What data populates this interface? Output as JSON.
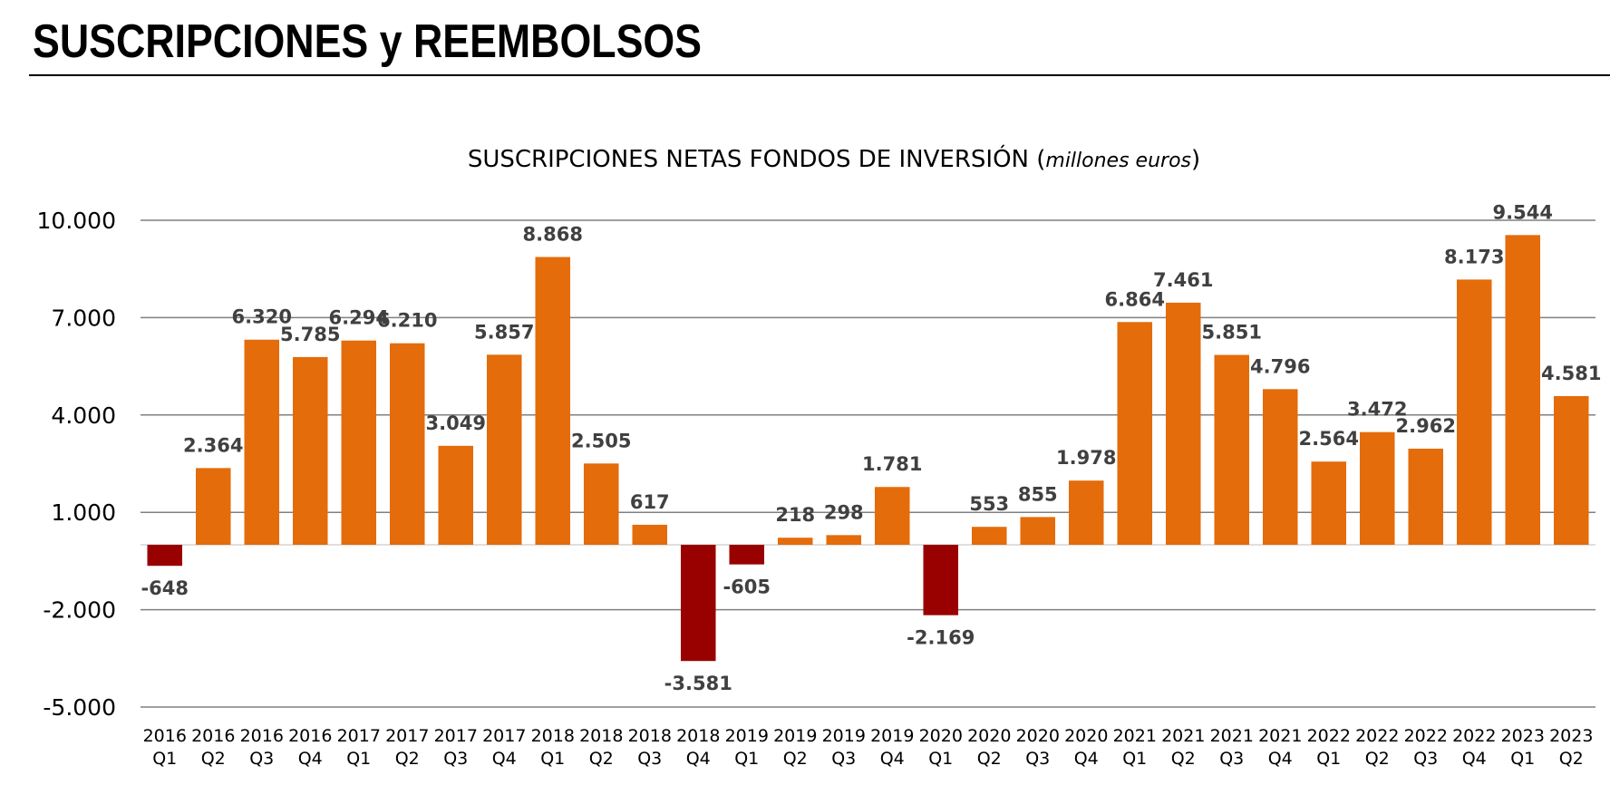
{
  "page": {
    "title": "SUSCRIPCIONES y REEMBOLSOS"
  },
  "colors": {
    "positive": "#E46C0A",
    "negative": "#990000",
    "grid": "#808080",
    "text": "#000000",
    "label": "#404040"
  },
  "chart_data": {
    "type": "bar",
    "title": "SUSCRIPCIONES NETAS FONDOS DE INVERSIÓN (",
    "title_italic": "millones euros",
    "title_close": ")",
    "ylim": [
      -5000,
      10000
    ],
    "yticks": [
      10000,
      7000,
      4000,
      1000,
      -2000,
      -5000
    ],
    "ytick_labels": [
      "10.000",
      "7.000",
      "4.000",
      "1.000",
      "-2.000",
      "-5.000"
    ],
    "categories": [
      [
        "2016",
        "Q1"
      ],
      [
        "2016",
        "Q2"
      ],
      [
        "2016",
        "Q3"
      ],
      [
        "2016",
        "Q4"
      ],
      [
        "2017",
        "Q1"
      ],
      [
        "2017",
        "Q2"
      ],
      [
        "2017",
        "Q3"
      ],
      [
        "2017",
        "Q4"
      ],
      [
        "2018",
        "Q1"
      ],
      [
        "2018",
        "Q2"
      ],
      [
        "2018",
        "Q3"
      ],
      [
        "2018",
        "Q4"
      ],
      [
        "2019",
        "Q1"
      ],
      [
        "2019",
        "Q2"
      ],
      [
        "2019",
        "Q3"
      ],
      [
        "2019",
        "Q4"
      ],
      [
        "2020",
        "Q1"
      ],
      [
        "2020",
        "Q2"
      ],
      [
        "2020",
        "Q3"
      ],
      [
        "2020",
        "Q4"
      ],
      [
        "2021",
        "Q1"
      ],
      [
        "2021",
        "Q2"
      ],
      [
        "2021",
        "Q3"
      ],
      [
        "2021",
        "Q4"
      ],
      [
        "2022",
        "Q1"
      ],
      [
        "2022",
        "Q2"
      ],
      [
        "2022",
        "Q3"
      ],
      [
        "2022",
        "Q4"
      ],
      [
        "2023",
        "Q1"
      ],
      [
        "2023",
        "Q2"
      ]
    ],
    "values": [
      -648,
      2364,
      6320,
      5785,
      6294,
      6210,
      3049,
      5857,
      8868,
      2505,
      617,
      -3581,
      -605,
      218,
      298,
      1781,
      -2169,
      553,
      855,
      1978,
      6864,
      7461,
      5851,
      4796,
      2564,
      3472,
      2962,
      8173,
      9544,
      4581
    ],
    "data_labels": [
      "-648",
      "2.364",
      "6.320",
      "5.785",
      "6.294",
      "6.210",
      "3.049",
      "5.857",
      "8.868",
      "2.505",
      "617",
      "-3.581",
      "-605",
      "218",
      "298",
      "1.781",
      "-2.169",
      "553",
      "855",
      "1.978",
      "6.864",
      "7.461",
      "5.851",
      "4.796",
      "2.564",
      "3.472",
      "2.962",
      "8.173",
      "9.544",
      "4.581"
    ],
    "xlabel": "",
    "ylabel": "",
    "grid": true,
    "legend": false
  }
}
